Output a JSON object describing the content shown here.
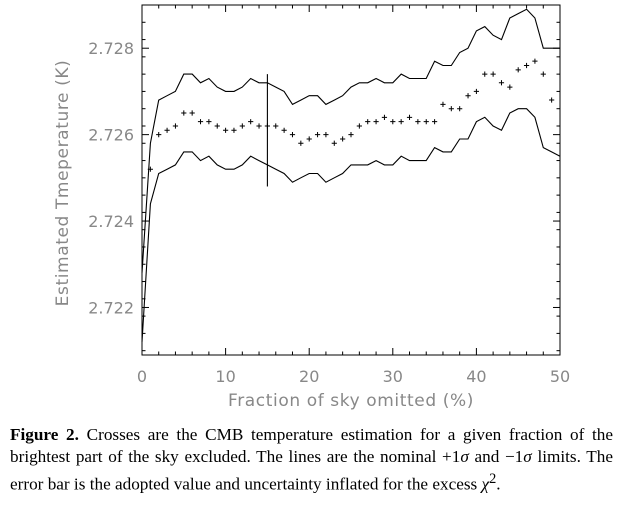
{
  "chart_data": {
    "type": "scatter",
    "xlabel": "Fraction of sky omitted (%)",
    "ylabel": "Estimated Tmeperature (K)",
    "xlim": [
      0,
      50
    ],
    "ylim": [
      2.7209,
      2.729
    ],
    "xticks": [
      {
        "value": 0,
        "label": "0"
      },
      {
        "value": 10,
        "label": "10"
      },
      {
        "value": 20,
        "label": "20"
      },
      {
        "value": 30,
        "label": "30"
      },
      {
        "value": 40,
        "label": "40"
      },
      {
        "value": 50,
        "label": "50"
      }
    ],
    "yticks": [
      {
        "value": 2.722,
        "label": "2.722"
      },
      {
        "value": 2.724,
        "label": "2.724"
      },
      {
        "value": 2.726,
        "label": "2.726"
      },
      {
        "value": 2.728,
        "label": "2.728"
      }
    ],
    "grid": false,
    "series": [
      {
        "role": "estimate",
        "marker": "cross",
        "x": [
          1,
          2,
          3,
          4,
          5,
          6,
          7,
          8,
          9,
          10,
          11,
          12,
          13,
          14,
          15,
          16,
          17,
          18,
          19,
          20,
          21,
          22,
          23,
          24,
          25,
          26,
          27,
          28,
          29,
          30,
          31,
          32,
          33,
          34,
          35,
          36,
          37,
          38,
          39,
          40,
          41,
          42,
          43,
          44,
          45,
          46,
          47,
          48,
          49
        ],
        "y": [
          2.7252,
          2.726,
          2.7261,
          2.7262,
          2.7265,
          2.7265,
          2.7263,
          2.7263,
          2.7262,
          2.7261,
          2.7261,
          2.7262,
          2.7263,
          2.7262,
          2.7262,
          2.7262,
          2.7261,
          2.726,
          2.7258,
          2.7259,
          2.726,
          2.726,
          2.7258,
          2.7259,
          2.726,
          2.7262,
          2.7263,
          2.7263,
          2.7264,
          2.7263,
          2.7263,
          2.7264,
          2.7263,
          2.7263,
          2.7263,
          2.7267,
          2.7266,
          2.7266,
          2.7269,
          2.727,
          2.7274,
          2.7274,
          2.7272,
          2.7271,
          2.7275,
          2.7276,
          2.7277,
          2.7274,
          2.7268
        ]
      },
      {
        "role": "upper-limit",
        "marker": "line",
        "x": [
          0,
          1,
          2,
          3,
          4,
          5,
          6,
          7,
          8,
          9,
          10,
          11,
          12,
          13,
          14,
          15,
          16,
          17,
          18,
          19,
          20,
          21,
          22,
          23,
          24,
          25,
          26,
          27,
          28,
          29,
          30,
          31,
          32,
          33,
          34,
          35,
          36,
          37,
          38,
          39,
          40,
          41,
          42,
          43,
          44,
          45,
          46,
          47,
          48,
          49,
          50
        ],
        "y": [
          2.7228,
          2.7258,
          2.7268,
          2.7269,
          2.727,
          2.7274,
          2.7274,
          2.7272,
          2.7273,
          2.7271,
          2.727,
          2.727,
          2.7271,
          2.7273,
          2.7272,
          2.7272,
          2.7271,
          2.727,
          2.7267,
          2.7268,
          2.7269,
          2.7269,
          2.7267,
          2.7268,
          2.7269,
          2.7271,
          2.7272,
          2.7272,
          2.7273,
          2.7272,
          2.7272,
          2.7274,
          2.7273,
          2.7273,
          2.7273,
          2.7277,
          2.7276,
          2.7276,
          2.7279,
          2.728,
          2.7284,
          2.7285,
          2.7283,
          2.7282,
          2.7287,
          2.7288,
          2.7289,
          2.7287,
          2.728,
          2.728,
          2.728
        ]
      },
      {
        "role": "lower-limit",
        "marker": "line",
        "x": [
          0,
          1,
          2,
          3,
          4,
          5,
          6,
          7,
          8,
          9,
          10,
          11,
          12,
          13,
          14,
          15,
          16,
          17,
          18,
          19,
          20,
          21,
          22,
          23,
          24,
          25,
          26,
          27,
          28,
          29,
          30,
          31,
          32,
          33,
          34,
          35,
          36,
          37,
          38,
          39,
          40,
          41,
          42,
          43,
          44,
          45,
          46,
          47,
          48,
          49,
          50
        ],
        "y": [
          2.7212,
          2.7244,
          2.7251,
          2.7252,
          2.7253,
          2.7256,
          2.7256,
          2.7254,
          2.7255,
          2.7253,
          2.7252,
          2.7252,
          2.7253,
          2.7255,
          2.7254,
          2.7253,
          2.7252,
          2.7251,
          2.7249,
          2.725,
          2.7251,
          2.7251,
          2.7249,
          2.725,
          2.7251,
          2.7253,
          2.7253,
          2.7253,
          2.7254,
          2.7253,
          2.7253,
          2.7255,
          2.7254,
          2.7254,
          2.7254,
          2.7257,
          2.7256,
          2.7256,
          2.7259,
          2.7259,
          2.7263,
          2.7264,
          2.7262,
          2.7261,
          2.7265,
          2.7266,
          2.7266,
          2.7264,
          2.7257,
          2.7256,
          2.7255
        ]
      }
    ],
    "error_bar": {
      "x": 15,
      "y_low": 2.7248,
      "y_high": 2.7274
    }
  },
  "caption": {
    "label": "Figure 2.",
    "p1": " Crosses are the CMB temperature estimation for a given fraction of the brightest part of the sky excluded. The lines are the nominal +1",
    "sigma": "σ",
    "p2": " and −1",
    "p3": " limits. The error bar is the adopted value and uncertainty inflated for the excess ",
    "chi": "χ",
    "exp": "2",
    "end": "."
  }
}
